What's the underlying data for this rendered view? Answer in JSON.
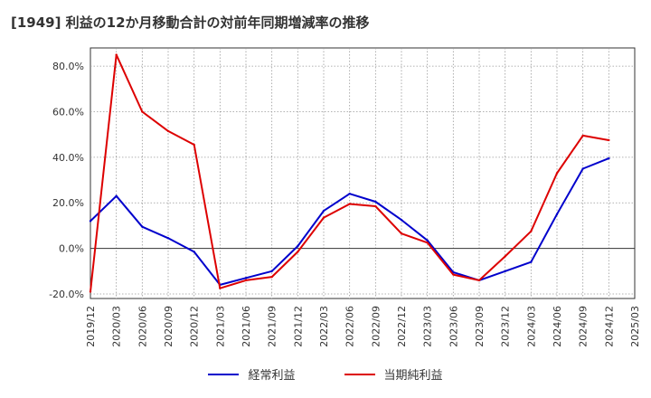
{
  "chart_data": {
    "type": "line",
    "title": "[1949]  利益の12か月移動合計の対前年同期増減率の推移",
    "xlabel": "",
    "ylabel": "",
    "ylim": [
      -22,
      88
    ],
    "yticks": [
      -20,
      0,
      20,
      40,
      60,
      80
    ],
    "ytick_labels": [
      "-20.0%",
      "0.0%",
      "20.0%",
      "40.0%",
      "60.0%",
      "80.0%"
    ],
    "categories": [
      "2019/12",
      "2020/03",
      "2020/06",
      "2020/09",
      "2020/12",
      "2021/03",
      "2021/06",
      "2021/09",
      "2021/12",
      "2022/03",
      "2022/06",
      "2022/09",
      "2022/12",
      "2023/03",
      "2023/06",
      "2023/09",
      "2023/12",
      "2024/03",
      "2024/06",
      "2024/09",
      "2024/12",
      "2025/03"
    ],
    "series": [
      {
        "name": "経常利益",
        "color": "#0000cc",
        "values": [
          12,
          23,
          9.5,
          4.5,
          -1.5,
          -16,
          -13,
          -10,
          1,
          16.5,
          24,
          20.5,
          12.5,
          3.5,
          -10.5,
          -14,
          -10,
          -6,
          15,
          35,
          39.5,
          null
        ]
      },
      {
        "name": "当期純利益",
        "color": "#dd0000",
        "values": [
          -19,
          85,
          60,
          51.5,
          45.5,
          -17.5,
          -14,
          -12.5,
          -1.5,
          13.5,
          19.5,
          18.5,
          6.5,
          2.5,
          -11.5,
          -14,
          -3.5,
          7.5,
          33,
          49.5,
          47.5,
          null
        ]
      }
    ],
    "grid": true,
    "legend_position": "bottom-center"
  }
}
